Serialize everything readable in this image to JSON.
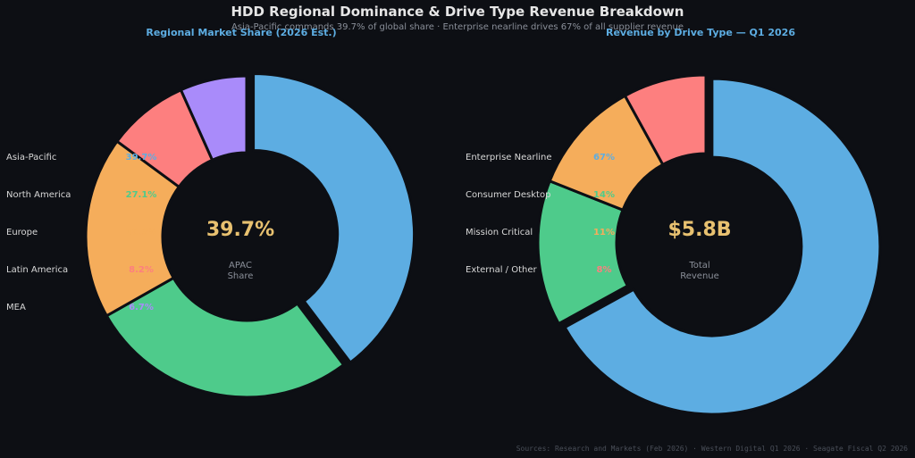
{
  "title": "HDD Regional Dominance & Drive Type Revenue Breakdown",
  "subtitle": "Asia-Pacific commands 39.7% of global share · Enterprise nearline drives 67% of all supplier revenue",
  "footer": "Sources: Research and Markets (Feb 2026) · Western Digital Q1 2026 · Seagate Fiscal Q2 2026",
  "colors": {
    "blue": "#5dade2",
    "green": "#4ecb8b",
    "orange": "#f5ad5b",
    "red": "#fd7f7f",
    "purple": "#a98bfa"
  },
  "chart_data": [
    {
      "type": "pie",
      "title": "Regional Market Share (2026 Est.)",
      "categories": [
        "Asia-Pacific",
        "North America",
        "Europe",
        "Latin America",
        "MEA"
      ],
      "values": [
        39.7,
        27.1,
        18.3,
        8.2,
        6.7
      ],
      "value_labels": [
        "39.7%",
        "27.1%",
        "18.3%",
        "8.2%",
        "6.7%"
      ],
      "center_value": "39.7%",
      "center_caption": [
        "APAC",
        "Share"
      ]
    },
    {
      "type": "pie",
      "title": "Revenue by Drive Type — Q1 2026",
      "categories": [
        "Enterprise Nearline",
        "Consumer Desktop",
        "Mission Critical",
        "External / Other"
      ],
      "values": [
        67,
        14,
        11,
        8
      ],
      "value_labels": [
        "67%",
        "14%",
        "11%",
        "8%"
      ],
      "center_value": "$5.8B",
      "center_caption": [
        "Total",
        "Revenue"
      ]
    }
  ]
}
